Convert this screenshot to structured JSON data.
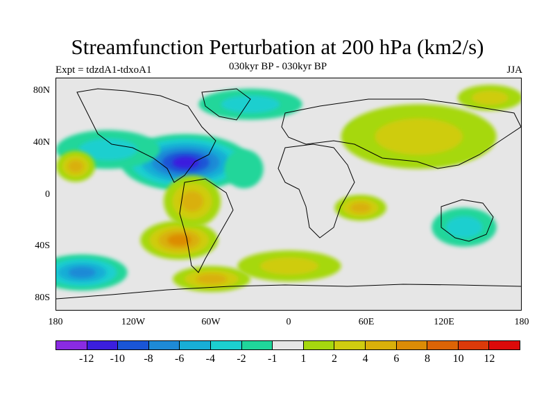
{
  "title": "Streamfunction Perturbation at 200 hPa (km2/s)",
  "left_label": "Expt = tdzdA1-tdxoA1",
  "center_label": "030kyr BP - 030kyr BP",
  "right_label": "JJA",
  "lat_labels": [
    "80N",
    "40N",
    "0",
    "40S",
    "80S"
  ],
  "lon_labels": [
    "180",
    "120W",
    "60W",
    "0",
    "60E",
    "120E",
    "180"
  ],
  "colorbar": {
    "colors": [
      "#8a2be2",
      "#3b1ede",
      "#1a55d6",
      "#1e8ad6",
      "#18aed6",
      "#1ccfcf",
      "#20d69a",
      "#e6e6e6",
      "#a6d80f",
      "#cfcc10",
      "#d9b00a",
      "#dc8c06",
      "#dc6406",
      "#dc3a0a",
      "#dc0a0a"
    ],
    "labels": [
      "-12",
      "-10",
      "-8",
      "-6",
      "-4",
      "-2",
      "-1",
      "1",
      "2",
      "4",
      "6",
      "8",
      "10",
      "12"
    ]
  },
  "map_data": {
    "region": "global",
    "lon_range": [
      -180,
      180
    ],
    "lat_range": [
      -90,
      90
    ],
    "field": "streamfunction perturbation",
    "anomalies": [
      {
        "lon": -80,
        "lat": 25,
        "value": -10,
        "rx": 50,
        "ry": 22
      },
      {
        "lon": -140,
        "lat": 35,
        "value": -3,
        "rx": 40,
        "ry": 15
      },
      {
        "lon": -30,
        "lat": 70,
        "value": -3,
        "rx": 40,
        "ry": 12
      },
      {
        "lon": 65,
        "lat": 50,
        "value": -2,
        "rx": 20,
        "ry": 8
      },
      {
        "lon": -160,
        "lat": -60,
        "value": -6,
        "rx": 35,
        "ry": 14
      },
      {
        "lon": 135,
        "lat": -25,
        "value": -3,
        "rx": 25,
        "ry": 15
      },
      {
        "lon": -35,
        "lat": 20,
        "value": -1,
        "rx": 15,
        "ry": 15
      },
      {
        "lon": -85,
        "lat": -35,
        "value": 7,
        "rx": 30,
        "ry": 15
      },
      {
        "lon": -75,
        "lat": -5,
        "value": 4,
        "rx": 22,
        "ry": 20
      },
      {
        "lon": -165,
        "lat": 22,
        "value": 4,
        "rx": 15,
        "ry": 12
      },
      {
        "lon": 55,
        "lat": -10,
        "value": 4,
        "rx": 20,
        "ry": 10
      },
      {
        "lon": 100,
        "lat": 45,
        "value": 2,
        "rx": 60,
        "ry": 25
      },
      {
        "lon": 0,
        "lat": -55,
        "value": 2,
        "rx": 40,
        "ry": 12
      },
      {
        "lon": 155,
        "lat": 75,
        "value": 2,
        "rx": 25,
        "ry": 10
      },
      {
        "lon": -60,
        "lat": -65,
        "value": 4,
        "rx": 30,
        "ry": 10
      }
    ]
  }
}
